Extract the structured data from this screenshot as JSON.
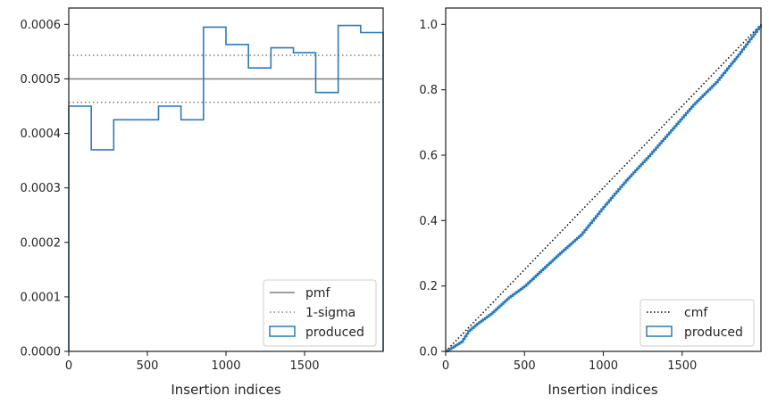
{
  "chart_data": [
    {
      "type": "histogram-step",
      "xlabel": "Insertion indices",
      "ylabel": "",
      "xlim": [
        0,
        2000
      ],
      "ylim": [
        0,
        0.00063
      ],
      "xticks": [
        0,
        500,
        1000,
        1500
      ],
      "xtick_labels": [
        "0",
        "500",
        "1000",
        "1500"
      ],
      "yticks": [
        0,
        0.0001,
        0.0002,
        0.0003,
        0.0004,
        0.0005,
        0.0006
      ],
      "ytick_labels": [
        "0.0000",
        "0.0001",
        "0.0002",
        "0.0003",
        "0.0004",
        "0.0005",
        "0.0006"
      ],
      "grid": false,
      "legend_position": "lower-right",
      "bin_edges": [
        0,
        143,
        286,
        429,
        571,
        714,
        857,
        1000,
        1143,
        1286,
        1429,
        1571,
        1714,
        1857,
        2000
      ],
      "series": [
        {
          "name": "produced",
          "style": "step",
          "color": "#2b7bb9",
          "values": [
            0.00045,
            0.00037,
            0.000425,
            0.000425,
            0.00045,
            0.000425,
            0.000595,
            0.000563,
            0.00052,
            0.000557,
            0.000548,
            0.000475,
            0.000598,
            0.000585
          ]
        }
      ],
      "reference_lines": [
        {
          "name": "pmf",
          "value": 0.0005,
          "style": "solid",
          "color": "#808080"
        },
        {
          "name": "1-sigma",
          "values": [
            0.000457,
            0.000543
          ],
          "style": "dotted",
          "color": "#808080"
        }
      ],
      "legend": [
        "pmf",
        "1-sigma",
        "produced"
      ]
    },
    {
      "type": "line",
      "xlabel": "Insertion indices",
      "ylabel": "",
      "xlim": [
        0,
        2000
      ],
      "ylim": [
        0,
        1.05
      ],
      "xticks": [
        0,
        500,
        1000,
        1500
      ],
      "xtick_labels": [
        "0",
        "500",
        "1000",
        "1500"
      ],
      "yticks": [
        0.0,
        0.2,
        0.4,
        0.6,
        0.8,
        1.0
      ],
      "ytick_labels": [
        "0.0",
        "0.2",
        "0.4",
        "0.6",
        "0.8",
        "1.0"
      ],
      "grid": false,
      "legend_position": "lower-right",
      "series": [
        {
          "name": "cmf",
          "style": "dotted",
          "color": "#000000",
          "x": [
            0,
            2000
          ],
          "y": [
            0,
            1.0
          ]
        },
        {
          "name": "produced",
          "style": "step",
          "color": "#2b7bb9",
          "x": [
            0,
            50,
            100,
            143,
            200,
            286,
            400,
            500,
            571,
            714,
            857,
            1000,
            1143,
            1286,
            1429,
            1571,
            1714,
            1857,
            2000
          ],
          "y": [
            0,
            0.015,
            0.03,
            0.062,
            0.085,
            0.115,
            0.165,
            0.2,
            0.232,
            0.296,
            0.357,
            0.442,
            0.523,
            0.597,
            0.676,
            0.755,
            0.823,
            0.908,
            1.0
          ]
        }
      ],
      "legend": [
        "cmf",
        "produced"
      ]
    }
  ]
}
